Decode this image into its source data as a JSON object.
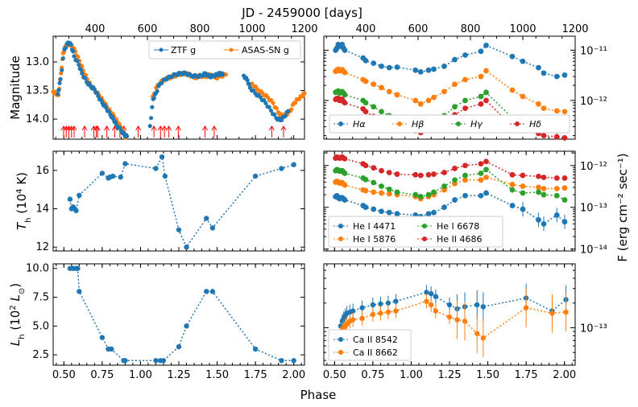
{
  "figure": {
    "top_axis_label": "JD - 2459000 [days]",
    "bottom_axis_label": "Phase",
    "right_axis_label": "F (erg cm⁻² sec⁻¹)"
  },
  "chart_data": [
    {
      "id": "lightcurve",
      "type": "scatter",
      "ylabel": "Magnitude",
      "xlabel_top": "JD - 2459000 [days]",
      "xlim": [
        240,
        1200
      ],
      "ylim": [
        14.35,
        12.55
      ],
      "y_inverted": true,
      "xticks_top": [
        400,
        600,
        800,
        1000,
        1200
      ],
      "yticks": [
        13.0,
        13.5,
        14.0
      ],
      "ytick_labels": [
        "13.0",
        "13.5",
        "14.0"
      ],
      "legend": [
        "ZTF g",
        "ASAS-SN g"
      ],
      "series": [
        {
          "name": "ASAS-SN g",
          "color": "#ff7f0e",
          "x": [
            240,
            250,
            260,
            270,
            278,
            288,
            300,
            312,
            325,
            340,
            355,
            370,
            385,
            400,
            415,
            430,
            445,
            460,
            472,
            485,
            495,
            505,
            512,
            516,
            519,
            620,
            640,
            660,
            680,
            700,
            720,
            740,
            760,
            780,
            800,
            820,
            840,
            860,
            880,
            900,
            1000,
            1020,
            1040,
            1060,
            1080,
            1100,
            1115,
            1130,
            1145,
            1160,
            1175,
            1190,
            1200
          ],
          "y": [
            13.52,
            13.55,
            13.58,
            13.2,
            12.85,
            12.72,
            12.68,
            12.72,
            12.82,
            12.98,
            13.15,
            13.3,
            13.42,
            13.5,
            13.58,
            13.68,
            13.78,
            13.88,
            13.95,
            14.05,
            14.12,
            14.2,
            14.26,
            14.3,
            14.32,
            13.6,
            13.4,
            13.32,
            13.28,
            13.25,
            13.22,
            13.2,
            13.22,
            13.28,
            13.24,
            13.26,
            13.22,
            13.28,
            13.25,
            13.22,
            13.38,
            13.48,
            13.55,
            13.62,
            13.72,
            13.88,
            13.95,
            13.92,
            13.86,
            13.72,
            13.65,
            13.6,
            13.55
          ]
        },
        {
          "name": "ZTF g",
          "color": "#1f77b4",
          "x": [
            258,
            268,
            283,
            297,
            308,
            320,
            338,
            350,
            368,
            382,
            398,
            412,
            428,
            442,
            458,
            470,
            482,
            500,
            513,
            522,
            610,
            622,
            632,
            648,
            668,
            688,
            708,
            728,
            748,
            768,
            788,
            808,
            822,
            838,
            852,
            868,
            878,
            888,
            968,
            982,
            992,
            1012,
            1032,
            1052,
            1072,
            1092,
            1108,
            1122,
            1138
          ],
          "y": [
            13.56,
            13.3,
            12.78,
            12.66,
            12.7,
            12.9,
            13.05,
            13.2,
            13.35,
            13.42,
            13.48,
            13.6,
            13.72,
            13.8,
            13.92,
            14.0,
            14.1,
            14.2,
            14.28,
            14.3,
            14.12,
            13.65,
            13.55,
            13.38,
            13.3,
            13.26,
            13.22,
            13.2,
            13.2,
            13.24,
            13.25,
            13.24,
            13.2,
            13.26,
            13.24,
            13.22,
            13.2,
            13.22,
            13.24,
            13.32,
            13.45,
            13.55,
            13.62,
            13.72,
            13.85,
            13.98,
            14.02,
            13.96,
            13.86
          ]
        }
      ],
      "arrow_times": [
        280,
        290,
        300,
        310,
        320,
        360,
        395,
        405,
        410,
        445,
        475,
        495,
        510,
        565,
        625,
        650,
        665,
        682,
        718,
        820,
        855,
        1075,
        1120
      ],
      "arrow_color": "#ff0000"
    },
    {
      "id": "temperature",
      "type": "line",
      "ylabel": "T_h (10⁴ K)",
      "xlim": [
        0.43,
        2.07
      ],
      "ylim": [
        11.8,
        17.0
      ],
      "yticks": [
        12,
        14,
        16
      ],
      "ytick_labels": [
        "12",
        "14",
        "16"
      ],
      "color": "#1f77b4",
      "x": [
        0.54,
        0.55,
        0.56,
        0.57,
        0.58,
        0.6,
        0.75,
        0.79,
        0.8,
        0.82,
        0.87,
        0.9,
        1.1,
        1.14,
        1.16,
        1.25,
        1.3,
        1.43,
        1.47,
        1.75,
        1.92,
        2.0
      ],
      "y": [
        14.5,
        14.0,
        14.1,
        14.0,
        13.9,
        14.7,
        15.85,
        15.6,
        15.65,
        15.7,
        15.65,
        16.35,
        16.1,
        16.7,
        15.7,
        12.9,
        12.0,
        13.5,
        13.0,
        15.7,
        16.1,
        16.3
      ]
    },
    {
      "id": "luminosity",
      "type": "line",
      "ylabel": "L_h (10² L⊙)",
      "xlim": [
        0.43,
        2.07
      ],
      "ylim": [
        1.6,
        10.4
      ],
      "yticks": [
        2.5,
        5.0,
        7.5,
        10.0
      ],
      "ytick_labels": [
        "2.5",
        "5.0",
        "7.5",
        "10.0"
      ],
      "xticks": [
        0.5,
        0.75,
        1.0,
        1.25,
        1.5,
        1.75,
        2.0
      ],
      "xtick_labels": [
        "0.50",
        "0.75",
        "1.00",
        "1.25",
        "1.50",
        "1.75",
        "2.00"
      ],
      "color": "#1f77b4",
      "x": [
        0.54,
        0.56,
        0.58,
        0.59,
        0.6,
        0.75,
        0.79,
        0.81,
        0.89,
        0.9,
        1.1,
        1.13,
        1.15,
        1.25,
        1.3,
        1.43,
        1.47,
        1.75,
        1.92,
        2.0
      ],
      "y": [
        10.0,
        10.0,
        10.0,
        10.0,
        8.0,
        4.0,
        3.0,
        3.0,
        2.0,
        2.0,
        2.0,
        2.0,
        2.0,
        3.2,
        5.0,
        8.0,
        8.0,
        3.0,
        2.0,
        2.0
      ]
    },
    {
      "id": "balmer",
      "type": "line",
      "log_y": true,
      "ylim": [
        1.7e-13,
        1.9e-11
      ],
      "xlim": [
        240,
        1200
      ],
      "xticks_top": [
        400,
        600,
        800,
        1000,
        1200
      ],
      "ytick_labels": [
        "10⁻¹¹",
        "10⁻¹²"
      ],
      "yticks": [
        1e-11,
        1e-12
      ],
      "legend": [
        "Hα",
        "Hβ",
        "Hγ",
        "Hδ"
      ],
      "x": [
        285,
        290,
        295,
        300,
        305,
        310,
        315,
        320,
        390,
        400,
        430,
        460,
        490,
        520,
        590,
        610,
        640,
        660,
        700,
        740,
        780,
        840,
        860,
        960,
        1000,
        1060,
        1080,
        1130,
        1160
      ],
      "series": [
        {
          "name": "Hα",
          "color": "#1f77b4",
          "y": [
            1e-11,
            1.1e-11,
            1.3e-11,
            1.2e-11,
            1.25e-11,
            1.3e-11,
            1.1e-11,
            1e-11,
            7e-12,
            6.2e-12,
            5.5e-12,
            4.8e-12,
            4.5e-12,
            4.6e-12,
            4e-12,
            3.7e-12,
            4e-12,
            4.2e-12,
            4.8e-12,
            6.5e-12,
            8e-12,
            9.5e-12,
            1.25e-11,
            7.5e-12,
            6e-12,
            4.5e-12,
            3.5e-12,
            3e-12,
            3.2e-12
          ]
        },
        {
          "name": "Hβ",
          "color": "#ff7f0e",
          "y": [
            3.8e-12,
            4e-12,
            4.2e-12,
            3.9e-12,
            4e-12,
            4.1e-12,
            3.8e-12,
            3.6e-12,
            2.6e-12,
            2.4e-12,
            2.1e-12,
            1.8e-12,
            1.5e-12,
            1.3e-12,
            1e-12,
            8.5e-13,
            1e-12,
            1.15e-12,
            1.5e-12,
            2.1e-12,
            2.6e-12,
            3e-12,
            3.9e-12,
            1.6e-12,
            1.2e-12,
            8.5e-13,
            7e-13,
            6.2e-13,
            6e-13
          ]
        },
        {
          "name": "Hγ",
          "color": "#2ca02c",
          "y": [
            1.45e-12,
            1.5e-12,
            1.55e-12,
            1.4e-12,
            1.45e-12,
            1.5e-12,
            1.4e-12,
            1.3e-12,
            1e-12,
            9e-13,
            7.5e-13,
            6e-13,
            5e-13,
            4.2e-13,
            3.5e-13,
            3e-13,
            3.5e-13,
            4e-13,
            5e-13,
            7.5e-13,
            1e-12,
            1.2e-12,
            1.45e-12,
            4.5e-13,
            3.7e-13,
            2.9e-13,
            2.5e-13,
            2.5e-13,
            2.6e-13
          ]
        },
        {
          "name": "Hδ",
          "color": "#d62728",
          "y": [
            1.05e-12,
            1.1e-12,
            1.1e-12,
            1e-12,
            1.05e-12,
            1.05e-12,
            9.5e-13,
            9e-13,
            6.8e-13,
            6e-13,
            4.8e-13,
            3.8e-13,
            3.2e-13,
            2.8e-13,
            2.5e-13,
            2.3e-13,
            2.6e-13,
            2.8e-13,
            3.5e-13,
            5.2e-13,
            7e-13,
            8.5e-13,
            1e-12,
            3e-13,
            2.6e-13,
            2.2e-13,
            2e-13,
            1.9e-13,
            1.8e-13
          ]
        }
      ]
    },
    {
      "id": "helium",
      "type": "line",
      "log_y": true,
      "ylim": [
        9e-15,
        2.2e-12
      ],
      "xlim": [
        240,
        1200
      ],
      "ytick_labels": [
        "10⁻¹²",
        "10⁻¹³",
        "10⁻¹⁴"
      ],
      "yticks": [
        1e-12,
        1e-13,
        1e-14
      ],
      "legend": [
        "He I 4471",
        "He I 5876",
        "He I 6678",
        "He II 4686"
      ],
      "x": [
        285,
        290,
        295,
        300,
        305,
        310,
        315,
        320,
        390,
        400,
        430,
        460,
        490,
        520,
        590,
        610,
        640,
        660,
        700,
        740,
        780,
        840,
        860,
        960,
        1000,
        1060,
        1080,
        1130,
        1160
      ],
      "series": [
        {
          "name": "He I 4471",
          "color": "#1f77b4",
          "y": [
            1.8e-13,
            1.9e-13,
            1.7e-13,
            1.6e-13,
            1.7e-13,
            1.7e-13,
            1.6e-13,
            1.5e-13,
            1.1e-13,
            1e-13,
            9e-14,
            8e-14,
            7.5e-14,
            7e-14,
            6.5e-14,
            6e-14,
            7e-14,
            7.5e-14,
            1e-13,
            1.5e-13,
            1.9e-13,
            1.9e-13,
            2.2e-13,
            1.1e-13,
            9e-14,
            5e-14,
            4e-14,
            6.5e-14,
            4.5e-14
          ]
        },
        {
          "name": "He I 5876",
          "color": "#ff7f0e",
          "y": [
            4e-13,
            4.2e-13,
            4e-13,
            3.8e-13,
            3.9e-13,
            3.9e-13,
            3.6e-13,
            3.4e-13,
            2.6e-13,
            2.5e-13,
            2.3e-13,
            2.2e-13,
            2.1e-13,
            2e-13,
            1.8e-13,
            1.6e-13,
            1.8e-13,
            2e-13,
            2.6e-13,
            3.7e-13,
            4.5e-13,
            4.5e-13,
            5.2e-13,
            3.5e-13,
            3.2e-13,
            3e-13,
            2.8e-13,
            2.8e-13,
            2.9e-13
          ]
        },
        {
          "name": "He I 6678",
          "color": "#2ca02c",
          "y": [
            7.5e-13,
            8e-13,
            7.8e-13,
            7.3e-13,
            7.4e-13,
            7.5e-13,
            7e-13,
            6.5e-13,
            5e-13,
            4.6e-13,
            3.9e-13,
            3.2e-13,
            2.7e-13,
            2.3e-13,
            2e-13,
            1.8e-13,
            2e-13,
            2.3e-13,
            3.2e-13,
            4.5e-13,
            5.8e-13,
            6.5e-13,
            8e-13,
            2.6e-13,
            2.2e-13,
            2.3e-13,
            2e-13,
            1.9e-13,
            1.5e-13
          ]
        },
        {
          "name": "He II 4686",
          "color": "#d62728",
          "y": [
            1.5e-12,
            1.6e-12,
            1.55e-12,
            1.5e-12,
            1.55e-12,
            1.6e-12,
            1.5e-12,
            1.45e-12,
            1.1e-12,
            1e-12,
            8.8e-13,
            7.5e-13,
            6.8e-13,
            6.2e-13,
            6e-13,
            5.8e-13,
            6e-13,
            6.2e-13,
            6.8e-13,
            8.5e-13,
            1e-12,
            1.1e-12,
            1.25e-12,
            6e-13,
            5.8e-13,
            5.5e-13,
            5.2e-13,
            5e-13,
            5e-13
          ]
        }
      ]
    },
    {
      "id": "calcium",
      "type": "line",
      "log_y": true,
      "ylim": [
        3.5e-14,
        6e-13
      ],
      "xlim": [
        0.43,
        2.07
      ],
      "xticks": [
        0.5,
        0.75,
        1.0,
        1.25,
        1.5,
        1.75,
        2.0
      ],
      "xtick_labels": [
        "0.50",
        "0.75",
        "1.00",
        "1.25",
        "1.50",
        "1.75",
        "2.00"
      ],
      "ytick_labels": [
        "10⁻¹³"
      ],
      "yticks": [
        1e-13
      ],
      "legend": [
        "Ca II 8542",
        "Ca II 8662"
      ],
      "x": [
        0.54,
        0.55,
        0.56,
        0.57,
        0.58,
        0.6,
        0.62,
        0.68,
        0.75,
        0.8,
        0.85,
        0.9,
        1.1,
        1.13,
        1.16,
        1.25,
        1.3,
        1.35,
        1.43,
        1.47,
        1.75,
        1.92,
        2.01
      ],
      "series": [
        {
          "name": "Ca II 8542",
          "color": "#1f77b4",
          "y": [
            1.05e-13,
            1.2e-13,
            1.3e-13,
            1.4e-13,
            1.5e-13,
            1.55e-13,
            1.6e-13,
            1.75e-13,
            1.9e-13,
            1.95e-13,
            2e-13,
            2.1e-13,
            2.7e-13,
            2.6e-13,
            2.4e-13,
            1.9e-13,
            1.7e-13,
            1.8e-13,
            1.9e-13,
            1.8e-13,
            2.3e-13,
            1.6e-13,
            2.2e-13
          ]
        },
        {
          "name": "Ca II 8662",
          "color": "#ff7f0e",
          "y": [
            8.5e-14,
            9.5e-14,
            1e-13,
            1.05e-13,
            1.1e-13,
            1.2e-13,
            1.25e-13,
            1.3e-13,
            1.45e-13,
            1.5e-13,
            1.55e-13,
            1.6e-13,
            2.1e-13,
            1.9e-13,
            1.6e-13,
            1.35e-13,
            1.25e-13,
            1.2e-13,
            8.5e-14,
            7.5e-14,
            1.75e-13,
            1.5e-13,
            1.55e-13
          ]
        }
      ]
    }
  ]
}
